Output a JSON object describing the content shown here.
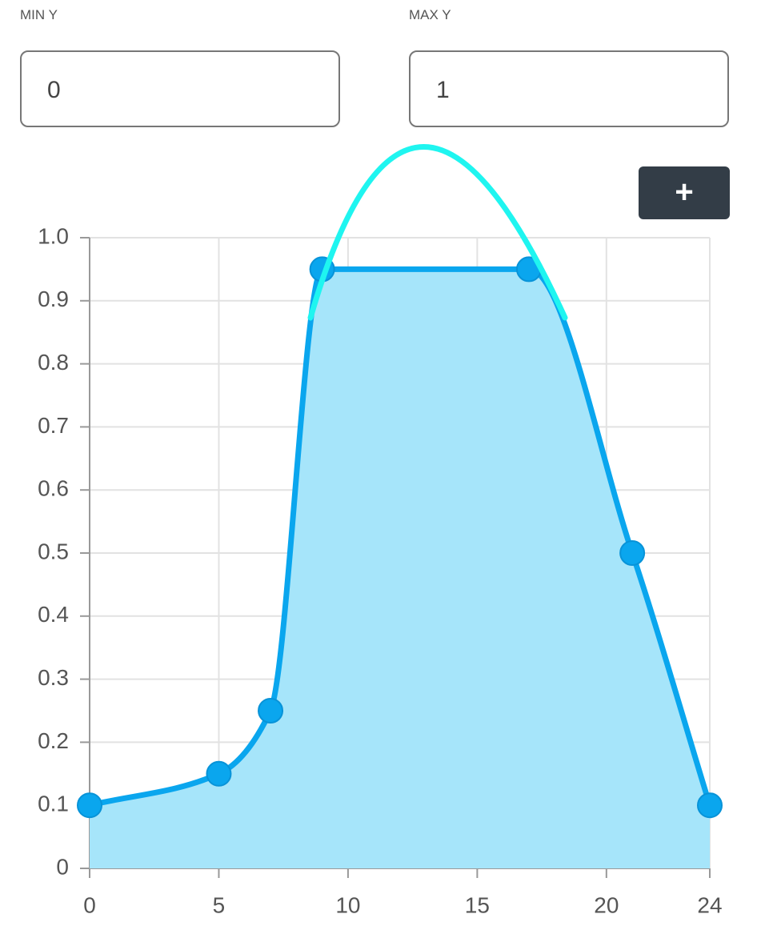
{
  "inputs": {
    "min_label": "MIN Y",
    "min_value": "0",
    "max_label": "MAX Y",
    "max_value": "1"
  },
  "add_button": {
    "label": "+"
  },
  "chart_data": {
    "type": "line",
    "x": [
      0,
      5,
      7,
      9,
      17,
      21,
      24
    ],
    "series": [
      {
        "color": "#0aa6ee",
        "area_color": "#a6e5fa",
        "values": [
          0.1,
          0.15,
          0.25,
          0.95,
          0.95,
          0.5,
          0.1
        ]
      }
    ],
    "xlim": [
      0,
      24
    ],
    "xticks": [
      0,
      5,
      10,
      15,
      20,
      24
    ],
    "ylim": [
      0,
      1
    ],
    "yticks": [
      0,
      0.1,
      0.2,
      0.3,
      0.4,
      0.5,
      0.6,
      0.7,
      0.8,
      0.9,
      {
        "value": 1,
        "label": "1.0"
      }
    ],
    "grid": true
  }
}
